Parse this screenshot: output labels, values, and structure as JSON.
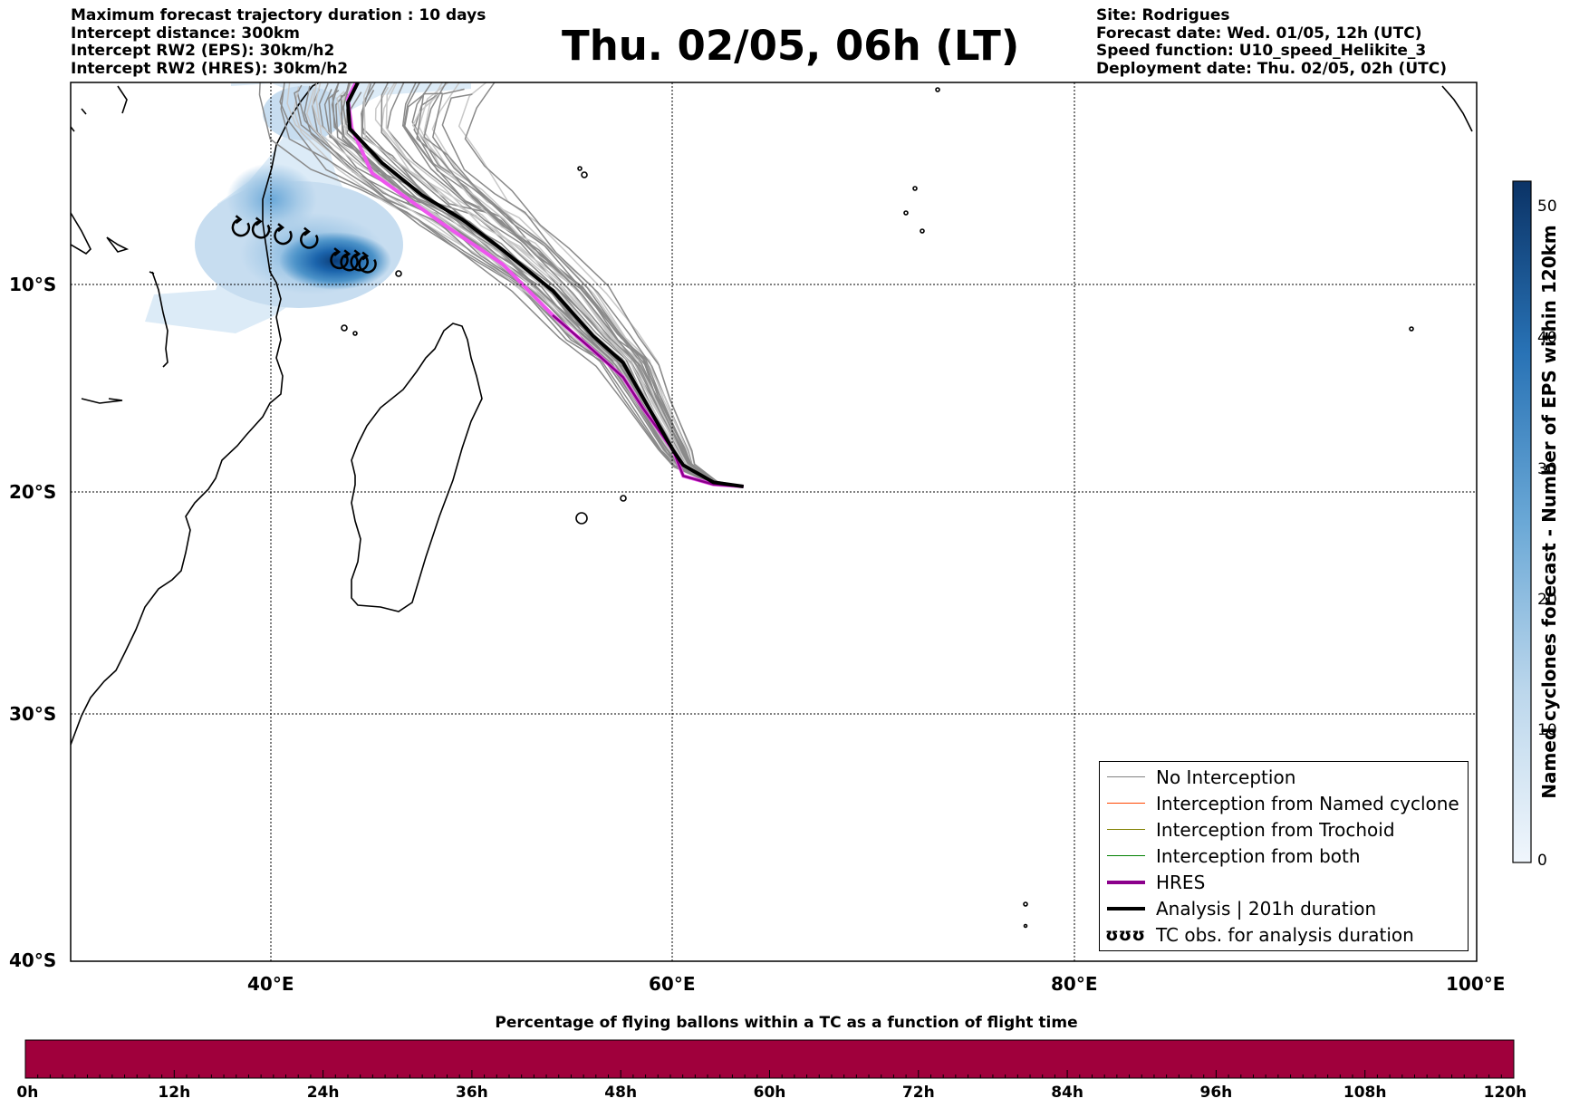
{
  "header": {
    "left": [
      "Maximum forecast trajectory duration : 10 days",
      "Intercept distance: 300km",
      "Intercept RW2 (EPS):  30km/h2",
      "Intercept RW2 (HRES): 30km/h2"
    ],
    "title": "Thu. 02/05, 06h (LT)",
    "right": [
      "Site: Rodrigues",
      "Forecast date: Wed. 01/05, 12h (UTC)",
      "Speed function: U10_speed_Helikite_3",
      "Deployment date: Thu. 02/05, 02h (UTC)"
    ]
  },
  "map": {
    "lat_labels": [
      "10°S",
      "20°S",
      "30°S",
      "40°S"
    ],
    "lon_labels": [
      "40°E",
      "60°E",
      "80°E",
      "100°E"
    ],
    "extent": {
      "lon_min": 30,
      "lon_max": 100,
      "lat_min": -40,
      "lat_max": 0
    },
    "site_marker": {
      "name": "Rodrigues",
      "lon": 63.4,
      "lat": -19.7
    },
    "colors": {
      "hres": "#8b008b",
      "analysis": "#000000",
      "no_interception": "#808080",
      "named_cyclone": "#ff4500",
      "trochoid": "#808000",
      "both": "#008000",
      "density": "#0b3d78"
    }
  },
  "legend": [
    {
      "label": "No Interception",
      "color": "#808080"
    },
    {
      "label": "Interception from Named cyclone",
      "color": "#ff4500"
    },
    {
      "label": "Interception from Trochoid",
      "color": "#808000"
    },
    {
      "label": "Interception from both",
      "color": "#008000"
    },
    {
      "label": "HRES",
      "color": "#8b008b"
    },
    {
      "label": "Analysis | 201h duration",
      "color": "#000000"
    },
    {
      "label": "TC obs. for analysis duration",
      "icon": "ʊʊʊ"
    }
  ],
  "colorbar": {
    "title": "Named cyclones forecast - Number of EPS within 120km",
    "ticks": [
      "0",
      "10",
      "20",
      "30",
      "40",
      "50"
    ]
  },
  "percentage_bar": {
    "title": "Percentage of flying ballons within a TC as a function of flight time",
    "color": "#a0003c",
    "ticks": [
      "0h",
      "12h",
      "24h",
      "36h",
      "48h",
      "60h",
      "72h",
      "84h",
      "96h",
      "108h",
      "120h"
    ]
  },
  "chart_data": {
    "type": "line",
    "title": "Thu. 02/05, 06h (LT)",
    "xlabel": "",
    "ylabel": "",
    "xlim": [
      30,
      100
    ],
    "ylim": [
      -40,
      0
    ],
    "series": [
      {
        "name": "HRES",
        "x": [
          63.5,
          62.0,
          60.5,
          60.0,
          58.5,
          57.5,
          56.0,
          54.0,
          51.5,
          48.5,
          45.0,
          44.0,
          43.8,
          44.2
        ],
        "y": [
          -19.7,
          -19.6,
          -19.2,
          -18.0,
          -16.0,
          -14.5,
          -13.2,
          -11.5,
          -9.0,
          -7.0,
          -4.5,
          -2.3,
          -0.8,
          0.0
        ]
      },
      {
        "name": "Analysis | 201h duration",
        "x": [
          63.5,
          62.0,
          60.5,
          60.0,
          58.5,
          57.5,
          56.0,
          54.0,
          51.5,
          49.5,
          47.5,
          45.5,
          43.9,
          43.8,
          44.3
        ],
        "y": [
          -19.7,
          -19.5,
          -18.7,
          -18.0,
          -15.5,
          -13.8,
          -12.5,
          -10.3,
          -8.3,
          -6.8,
          -5.6,
          -4.0,
          -2.3,
          -1.0,
          0.0
        ]
      },
      {
        "name": "TC obs. for analysis duration",
        "x": [
          38.5,
          39.5,
          40.6,
          41.9,
          43.4,
          43.9,
          44.4,
          44.8
        ],
        "y": [
          -7.2,
          -7.3,
          -7.6,
          -7.8,
          -8.8,
          -8.9,
          -8.9,
          -9.0
        ]
      }
    ]
  }
}
